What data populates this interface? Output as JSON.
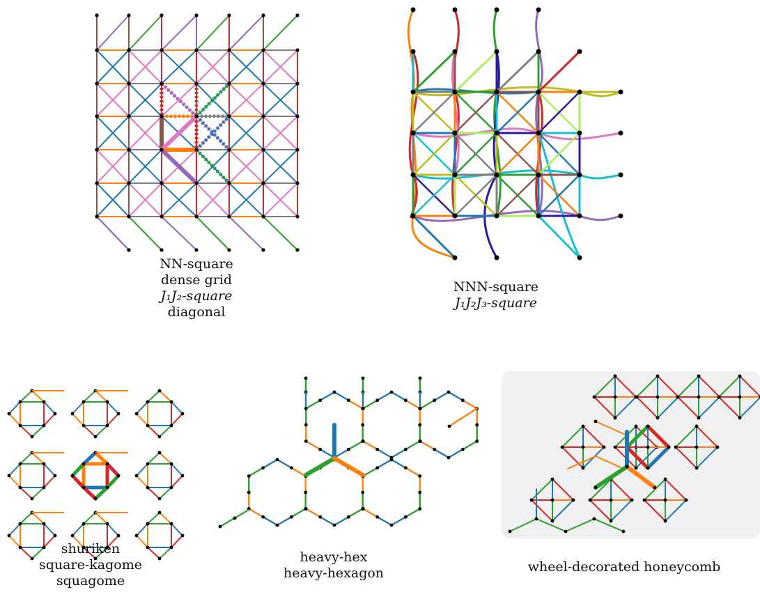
{
  "panels": [
    {
      "id": "nn-square",
      "caption": [
        "NN-square",
        "dense grid",
        "J₁J₂-square",
        "diagonal"
      ]
    },
    {
      "id": "nnn-square",
      "caption": [
        "NNN-square",
        "J₁J₂J₃-square"
      ]
    },
    {
      "id": "shuriken",
      "caption": [
        "shuriken",
        "square-kagome",
        "squagome"
      ]
    },
    {
      "id": "heavy-hex",
      "caption": [
        "heavy-hex",
        "heavy-hexagon"
      ]
    },
    {
      "id": "wheel-honeycomb",
      "caption": [
        "wheel-decorated honeycomb"
      ]
    }
  ],
  "palette": {
    "blue": "#1f77b4",
    "orange": "#ff7f0e",
    "green": "#2ca02c",
    "red": "#d62728",
    "purple": "#9467bd",
    "brown": "#8c564b",
    "pink": "#e377c2",
    "gray": "#7f7f7f",
    "olive": "#bcbd22",
    "cyan": "#17becf",
    "navy": "#2a1aa0",
    "lime": "#a8f060"
  }
}
